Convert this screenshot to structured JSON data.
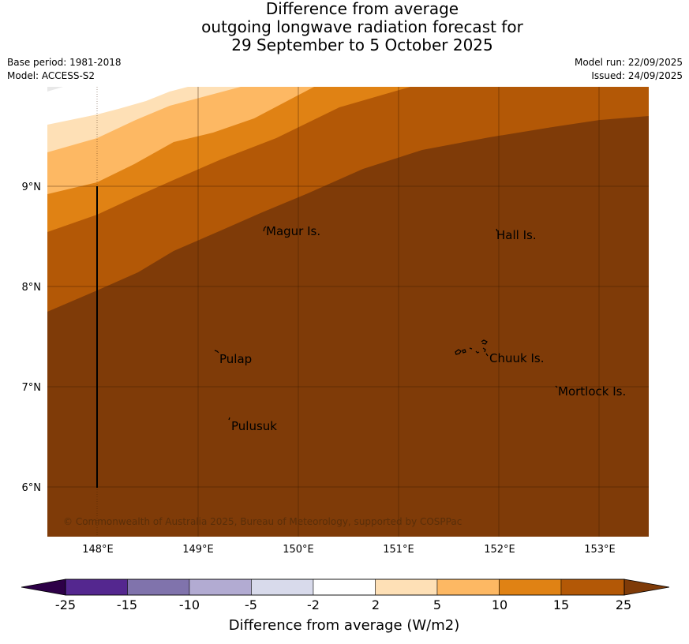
{
  "title": {
    "line1": "Difference from average",
    "line2": "outgoing longwave radiation forecast for",
    "line3": "29 September to 5 October 2025"
  },
  "meta": {
    "base_period": "Base period: 1981-2018",
    "model": "Model: ACCESS-S2",
    "model_run": "Model run: 22/09/2025",
    "issued": "Issued: 24/09/2025"
  },
  "map": {
    "lat_labels": [
      "9°N",
      "8°N",
      "7°N",
      "6°N"
    ],
    "lon_labels": [
      "148°E",
      "149°E",
      "150°E",
      "151°E",
      "152°E",
      "153°E"
    ],
    "places": [
      "Magur Is.",
      "Hall Is.",
      "Pulap",
      "Chuuk Is.",
      "Mortlock Is.",
      "Pulusuk"
    ],
    "copyright": "© Commonwealth of Australia 2025, Bureau of Meteorology, supported by COSPPac"
  },
  "colorbar": {
    "ticks": [
      "-25",
      "-15",
      "-10",
      "-5",
      "-2",
      "2",
      "5",
      "10",
      "15",
      "25"
    ],
    "title": "Difference from average (W/m2)",
    "colors": [
      "#54278f",
      "#8073ac",
      "#b2abd2",
      "#d8daeb",
      "#ffffff",
      "#fee0b6",
      "#fdb863",
      "#e08214",
      "#b35806",
      "#7f3b08"
    ]
  }
}
